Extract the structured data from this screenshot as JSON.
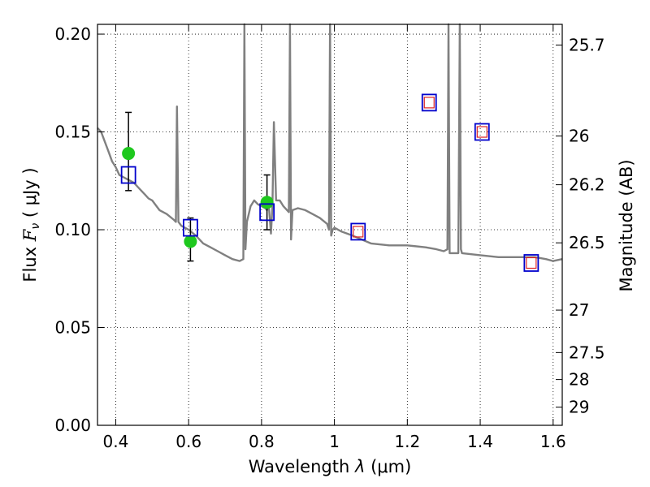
{
  "chart_data": {
    "type": "line",
    "xlabel": "Wavelength  λ (μm)",
    "ylabel": "Flux  F_ν  ( μJy )",
    "ylabel_parts": {
      "pre": "Flux  ",
      "var": "F",
      "sub": "ν",
      "post": "  ( μJy )"
    },
    "xlabel_parts": {
      "pre": "Wavelength  ",
      "var": "λ",
      "post": " (μm)"
    },
    "y2label": "Magnitude (AB)",
    "xlim": [
      0.35,
      1.625
    ],
    "ylim": [
      0.0,
      0.205
    ],
    "grid": true,
    "colors": {
      "spectrum": "#808080",
      "observed": "#1ec81e",
      "model": "#0000cc",
      "model_inner": "#dd2222",
      "errorbar": "#000000"
    },
    "x_ticks": [
      "0.4",
      "0.6",
      "0.8",
      "1",
      "1.2",
      "1.4",
      "1.6"
    ],
    "x_tick_values": [
      0.4,
      0.6,
      0.8,
      1.0,
      1.2,
      1.4,
      1.6
    ],
    "y_ticks": [
      "0.00",
      "0.05",
      "0.10",
      "0.15",
      "0.20"
    ],
    "y_tick_values": [
      0.0,
      0.05,
      0.1,
      0.15,
      0.2
    ],
    "y2_ticks": [
      "25.7",
      "26",
      "26.2",
      "26.5",
      "27",
      "27.5",
      "28",
      "29"
    ],
    "y2_tick_flux": [
      0.1944,
      0.1479,
      0.123,
      0.0933,
      0.0589,
      0.0372,
      0.0234,
      0.0093
    ],
    "spectrum": {
      "name": "",
      "x": [
        0.35,
        0.36,
        0.37,
        0.38,
        0.39,
        0.4,
        0.41,
        0.42,
        0.43,
        0.44,
        0.45,
        0.46,
        0.47,
        0.48,
        0.49,
        0.5,
        0.52,
        0.54,
        0.56,
        0.565,
        0.568,
        0.572,
        0.58,
        0.6,
        0.62,
        0.64,
        0.66,
        0.68,
        0.7,
        0.72,
        0.74,
        0.75,
        0.753,
        0.756,
        0.76,
        0.77,
        0.78,
        0.79,
        0.8,
        0.81,
        0.815,
        0.82,
        0.826,
        0.83,
        0.834,
        0.84,
        0.85,
        0.86,
        0.87,
        0.875,
        0.878,
        0.881,
        0.885,
        0.9,
        0.92,
        0.94,
        0.96,
        0.98,
        0.985,
        0.988,
        0.991,
        0.995,
        1.0,
        1.02,
        1.05,
        1.1,
        1.15,
        1.2,
        1.25,
        1.28,
        1.3,
        1.31,
        1.313,
        1.316,
        1.32,
        1.34,
        1.344,
        1.347,
        1.35,
        1.4,
        1.45,
        1.5,
        1.55,
        1.58,
        1.6,
        1.625
      ],
      "y": [
        0.152,
        0.15,
        0.145,
        0.14,
        0.135,
        0.132,
        0.128,
        0.127,
        0.126,
        0.125,
        0.124,
        0.122,
        0.12,
        0.118,
        0.116,
        0.115,
        0.11,
        0.108,
        0.105,
        0.104,
        0.163,
        0.104,
        0.102,
        0.1,
        0.097,
        0.093,
        0.091,
        0.089,
        0.087,
        0.085,
        0.084,
        0.085,
        0.205,
        0.09,
        0.104,
        0.112,
        0.115,
        0.113,
        0.112,
        0.111,
        0.11,
        0.112,
        0.098,
        0.112,
        0.155,
        0.115,
        0.115,
        0.112,
        0.11,
        0.109,
        0.205,
        0.095,
        0.11,
        0.111,
        0.11,
        0.108,
        0.106,
        0.103,
        0.1,
        0.205,
        0.097,
        0.1,
        0.101,
        0.099,
        0.097,
        0.093,
        0.092,
        0.092,
        0.091,
        0.09,
        0.089,
        0.09,
        0.205,
        0.088,
        0.088,
        0.088,
        0.205,
        0.09,
        0.088,
        0.087,
        0.086,
        0.086,
        0.086,
        0.085,
        0.084,
        0.085
      ]
    },
    "series": [
      {
        "name": "",
        "marker": "circle",
        "x": [
          0.435,
          0.605,
          0.815
        ],
        "y": [
          0.139,
          0.094,
          0.114
        ],
        "err_low": [
          0.12,
          0.084,
          0.1
        ],
        "err_high": [
          0.16,
          0.106,
          0.128
        ]
      },
      {
        "name": "",
        "marker": "square",
        "x": [
          0.435,
          0.605,
          0.815,
          1.065,
          1.26,
          1.405,
          1.54
        ],
        "y": [
          0.128,
          0.101,
          0.109,
          0.099,
          0.165,
          0.15,
          0.083
        ],
        "inner": [
          false,
          false,
          false,
          true,
          true,
          true,
          true
        ]
      }
    ]
  }
}
